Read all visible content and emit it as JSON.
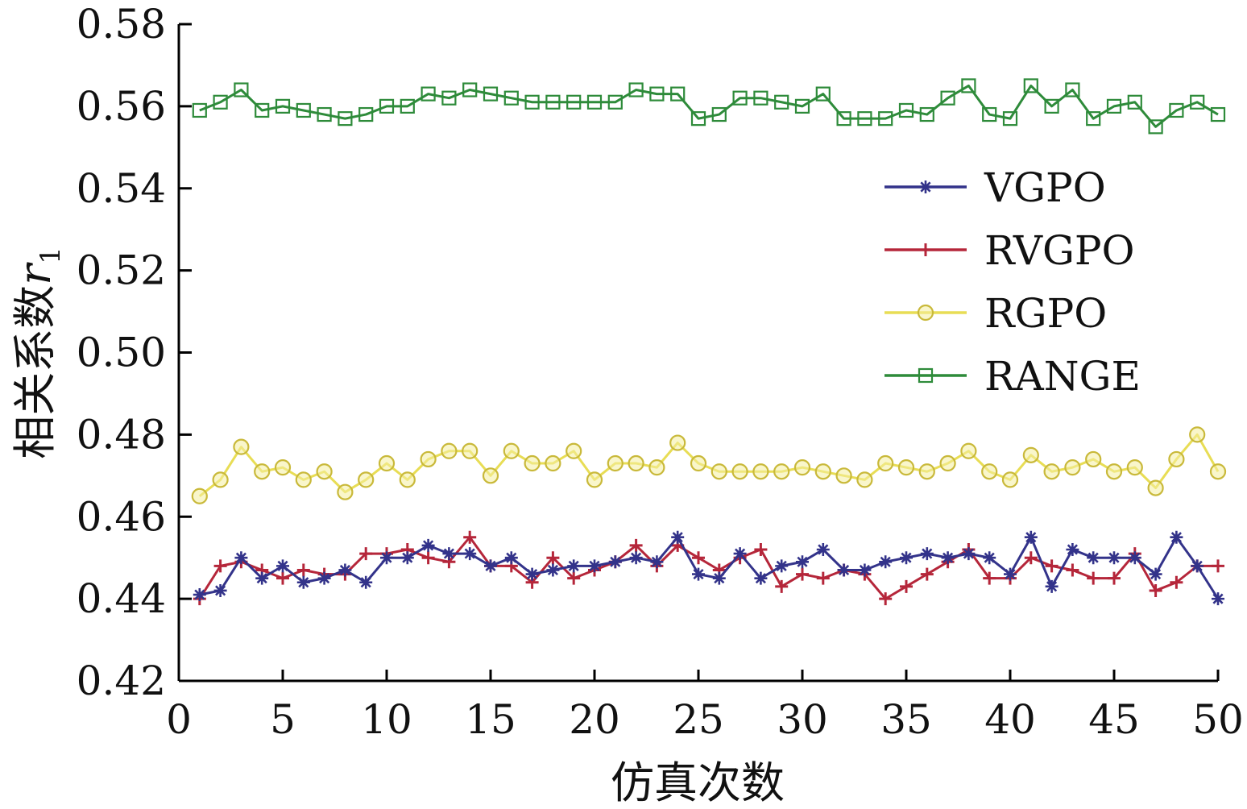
{
  "chart_data": {
    "type": "line",
    "xlabel": "仿真次数",
    "ylabel": "相关系数",
    "ylabel_symbol": "r",
    "ylabel_subscript": "1",
    "xlim": [
      0,
      50
    ],
    "ylim": [
      0.42,
      0.58
    ],
    "xticks": [
      0,
      5,
      10,
      15,
      20,
      25,
      30,
      35,
      40,
      45,
      50
    ],
    "yticks": [
      "0.42",
      "0.44",
      "0.46",
      "0.48",
      "0.50",
      "0.52",
      "0.54",
      "0.56",
      "0.58"
    ],
    "legend_position": "right",
    "grid": false,
    "x": [
      1,
      2,
      3,
      4,
      5,
      6,
      7,
      8,
      9,
      10,
      11,
      12,
      13,
      14,
      15,
      16,
      17,
      18,
      19,
      20,
      21,
      22,
      23,
      24,
      25,
      26,
      27,
      28,
      29,
      30,
      31,
      32,
      33,
      34,
      35,
      36,
      37,
      38,
      39,
      40,
      41,
      42,
      43,
      44,
      45,
      46,
      47,
      48,
      49,
      50
    ],
    "series": [
      {
        "name": "VGPO",
        "color": "#33338a",
        "marker": "star",
        "values": [
          0.441,
          0.442,
          0.45,
          0.445,
          0.448,
          0.444,
          0.445,
          0.447,
          0.444,
          0.45,
          0.45,
          0.453,
          0.451,
          0.451,
          0.448,
          0.45,
          0.446,
          0.447,
          0.448,
          0.448,
          0.449,
          0.45,
          0.449,
          0.455,
          0.446,
          0.445,
          0.451,
          0.445,
          0.448,
          0.449,
          0.452,
          0.447,
          0.447,
          0.449,
          0.45,
          0.451,
          0.45,
          0.451,
          0.45,
          0.446,
          0.455,
          0.443,
          0.452,
          0.45,
          0.45,
          0.45,
          0.446,
          0.455,
          0.448,
          0.44
        ]
      },
      {
        "name": "RVGPO",
        "color": "#b5263a",
        "marker": "plus",
        "values": [
          0.44,
          0.448,
          0.449,
          0.447,
          0.445,
          0.447,
          0.446,
          0.446,
          0.451,
          0.451,
          0.452,
          0.45,
          0.449,
          0.455,
          0.448,
          0.448,
          0.444,
          0.45,
          0.445,
          0.447,
          0.449,
          0.453,
          0.448,
          0.453,
          0.45,
          0.447,
          0.45,
          0.452,
          0.443,
          0.446,
          0.445,
          0.447,
          0.446,
          0.44,
          0.443,
          0.446,
          0.449,
          0.452,
          0.445,
          0.445,
          0.45,
          0.448,
          0.447,
          0.445,
          0.445,
          0.451,
          0.442,
          0.444,
          0.448,
          0.448
        ]
      },
      {
        "name": "RGPO",
        "color": "#e6d84a",
        "marker": "circle",
        "values": [
          0.465,
          0.469,
          0.477,
          0.471,
          0.472,
          0.469,
          0.471,
          0.466,
          0.469,
          0.473,
          0.469,
          0.474,
          0.476,
          0.476,
          0.47,
          0.476,
          0.473,
          0.473,
          0.476,
          0.469,
          0.473,
          0.473,
          0.472,
          0.478,
          0.473,
          0.471,
          0.471,
          0.471,
          0.471,
          0.472,
          0.471,
          0.47,
          0.469,
          0.473,
          0.472,
          0.471,
          0.473,
          0.476,
          0.471,
          0.469,
          0.475,
          0.471,
          0.472,
          0.474,
          0.471,
          0.472,
          0.467,
          0.474,
          0.48,
          0.471
        ]
      },
      {
        "name": "RANGE",
        "color": "#2e8b3a",
        "marker": "square",
        "values": [
          0.559,
          0.561,
          0.564,
          0.559,
          0.56,
          0.559,
          0.558,
          0.557,
          0.558,
          0.56,
          0.56,
          0.563,
          0.562,
          0.564,
          0.563,
          0.562,
          0.561,
          0.561,
          0.561,
          0.561,
          0.561,
          0.564,
          0.563,
          0.563,
          0.557,
          0.558,
          0.562,
          0.562,
          0.561,
          0.56,
          0.563,
          0.557,
          0.557,
          0.557,
          0.559,
          0.558,
          0.562,
          0.565,
          0.558,
          0.557,
          0.565,
          0.56,
          0.564,
          0.557,
          0.56,
          0.561,
          0.555,
          0.559,
          0.561,
          0.558
        ]
      }
    ]
  }
}
